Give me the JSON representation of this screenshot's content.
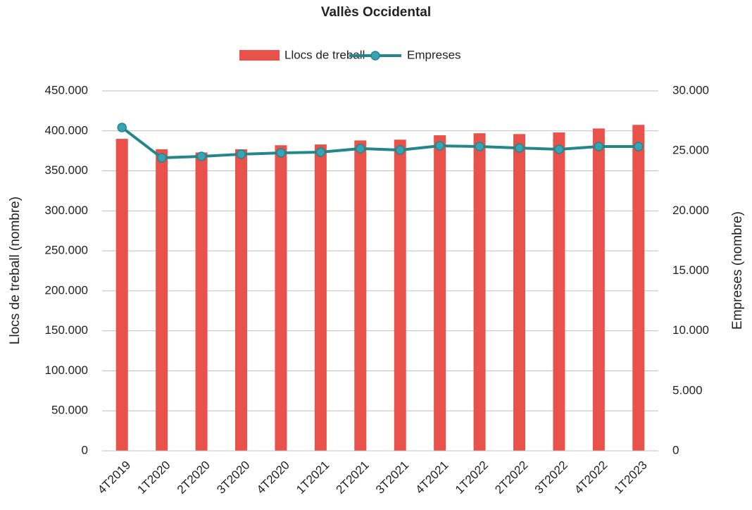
{
  "chart_data": {
    "type": "bar_line",
    "title": "Vallès Occidental",
    "y_label": "Llocs de treball (nombre)",
    "y2_label": "Empreses (nombre)",
    "categories": [
      "4T2019",
      "1T2020",
      "2T2020",
      "3T2020",
      "4T2020",
      "1T2021",
      "2T2021",
      "3T2021",
      "4T2021",
      "1T2022",
      "2T2022",
      "3T2022",
      "4T2022",
      "1T2023"
    ],
    "series": [
      {
        "name": "Llocs de treball",
        "type": "bar",
        "color": "#e8524a",
        "axis": "y",
        "values": [
          390000,
          377000,
          373000,
          377000,
          382000,
          383000,
          388000,
          389000,
          394500,
          397000,
          396000,
          398000,
          403000,
          407500
        ]
      },
      {
        "name": "Empreses",
        "type": "line",
        "color": "#23878a",
        "marker_color": "#3aa3b3",
        "axis": "y2",
        "values": [
          26950,
          24420,
          24540,
          24720,
          24830,
          24890,
          25190,
          25070,
          25420,
          25360,
          25240,
          25130,
          25360,
          25360
        ]
      }
    ],
    "ylim": [
      0,
      450000
    ],
    "yticks": [
      0,
      {
        "value": 50000,
        "label": "50.000"
      },
      {
        "value": 100000,
        "label": "100.000"
      },
      {
        "value": 150000,
        "label": "150.000"
      },
      {
        "value": 200000,
        "label": "200.000"
      },
      {
        "value": 250000,
        "label": "250.000"
      },
      {
        "value": 300000,
        "label": "300.000"
      },
      {
        "value": 350000,
        "label": "350.000"
      },
      {
        "value": 400000,
        "label": "400.000"
      },
      {
        "value": 450000,
        "label": "450.000"
      }
    ],
    "y2lim": [
      0,
      30000
    ],
    "y2ticks": [
      0,
      {
        "value": 5000,
        "label": "5.000"
      },
      {
        "value": 10000,
        "label": "10.000"
      },
      {
        "value": 15000,
        "label": "15.000"
      },
      {
        "value": 20000,
        "label": "20.000"
      },
      {
        "value": 25000,
        "label": "25.000"
      },
      {
        "value": 30000,
        "label": "30.000"
      }
    ],
    "grid": true,
    "legend": "top"
  }
}
